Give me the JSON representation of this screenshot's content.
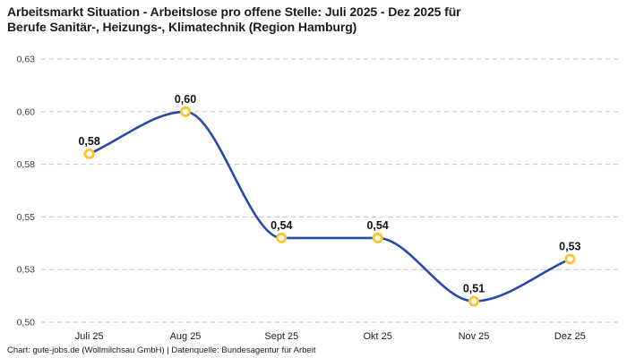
{
  "title": "Arbeitsmarkt Situation - Arbeitslose pro offene Stelle: Juli 2025 - Dez 2025 für\nBerufe Sanitär-, Heizungs-, Klimatechnik (Region Hamburg)",
  "footer": "Chart: gute-jobs.de (Wollmilchsau GmbH) | Datenquelle: Bundesagentur für Arbeit",
  "chart_data": {
    "type": "line",
    "title": "Arbeitsmarkt Situation - Arbeitslose pro offene Stelle: Juli 2025 - Dez 2025 für Berufe Sanitär-, Heizungs-, Klimatechnik (Region Hamburg)",
    "categories": [
      "Juli 25",
      "Aug 25",
      "Sept 25",
      "Okt 25",
      "Nov 25",
      "Dez 25"
    ],
    "values": [
      0.58,
      0.6,
      0.54,
      0.54,
      0.51,
      0.53
    ],
    "point_labels": [
      "0,58",
      "0,60",
      "0,54",
      "0,54",
      "0,51",
      "0,53"
    ],
    "y_ticks": [
      {
        "value": 0.625,
        "label": "0,63"
      },
      {
        "value": 0.6,
        "label": "0,60"
      },
      {
        "value": 0.575,
        "label": "0,58"
      },
      {
        "value": 0.55,
        "label": "0,55"
      },
      {
        "value": 0.525,
        "label": "0,53"
      },
      {
        "value": 0.5,
        "label": "0,50"
      }
    ],
    "ylim": [
      0.5,
      0.625
    ],
    "xlabel": "",
    "ylabel": "",
    "grid": "horizontal-dashed",
    "legend": "none",
    "curve": "monotone",
    "colors": {
      "line": "#2a49ad",
      "marker_ring": "#fcc32c",
      "marker_fill": "#ffffff",
      "gridline": "#c2c2c2"
    }
  }
}
